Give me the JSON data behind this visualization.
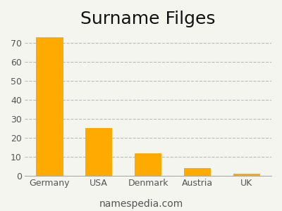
{
  "title": "Surname Filges",
  "categories": [
    "Germany",
    "USA",
    "Denmark",
    "Austria",
    "UK"
  ],
  "values": [
    73,
    25,
    12,
    4,
    1
  ],
  "bar_color": "#FFAA00",
  "background_color": "#f5f5f0",
  "ylim": [
    0,
    76
  ],
  "yticks": [
    0,
    10,
    20,
    30,
    40,
    50,
    60,
    70
  ],
  "grid_color": "#bbbbbb",
  "footer_text": "namespedia.com",
  "title_fontsize": 18,
  "tick_fontsize": 9,
  "footer_fontsize": 10
}
